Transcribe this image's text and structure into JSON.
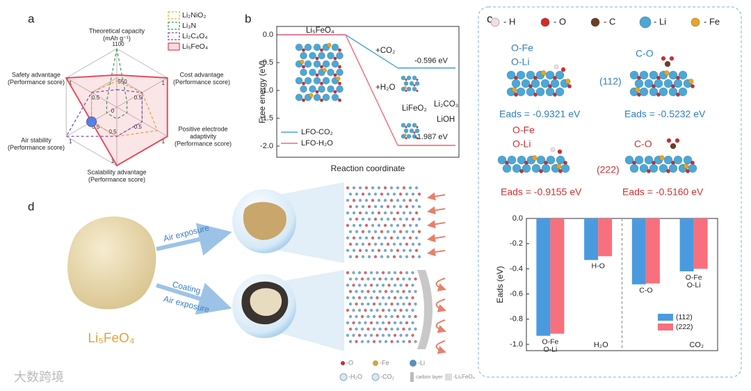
{
  "panel_labels": [
    "a",
    "b",
    "c",
    "d"
  ],
  "chart_data": [
    {
      "type": "radar",
      "axes": [
        [
          "Theoretical capacity",
          "(mAh g⁻¹)"
        ],
        [
          "Cost advantage",
          "(Performance score)"
        ],
        [
          "Positive electrode",
          "adaptivity",
          "(Performance score)"
        ],
        [
          "Scalability advantage",
          "(Performance score)"
        ],
        [
          "Air stability",
          "(Performance score)"
        ],
        [
          "Safety advantage",
          "(Performance score)"
        ]
      ],
      "rlim": [
        0,
        1
      ],
      "rticks": [
        0,
        0.5,
        1
      ],
      "capacity_ticks": [
        {
          "value": 0.5,
          "label": "550"
        },
        {
          "value": 1,
          "label": "1100"
        }
      ],
      "legend": "upper right",
      "series": [
        {
          "name": "Li₂NiO₂",
          "color": "#e8b43a",
          "dash": true,
          "values": [
            0.45,
            0.5,
            0.8,
            0.5,
            0.5,
            0.5
          ]
        },
        {
          "name": "Li₃N",
          "color": "#3f9e5a",
          "dash": true,
          "values": [
            1,
            0.2,
            0.2,
            0.2,
            0.2,
            0.2
          ]
        },
        {
          "name": "Li₂C₄O₄",
          "color": "#7a4fb5",
          "dash": true,
          "values": [
            0.3,
            0.5,
            0.5,
            0.5,
            1,
            0.5
          ]
        },
        {
          "name": "Li₅FeO₄",
          "color": "#e05060",
          "dash": false,
          "fill": true,
          "highlight_index": 4,
          "highlight_color": "#5b7fe0",
          "values": [
            0.55,
            1,
            1,
            1,
            0.5,
            1
          ]
        }
      ]
    },
    {
      "type": "energy-profile",
      "ylabel": "Free energy (eV)",
      "xlabel": "Reaction coordinate",
      "ylim": [
        -2.2,
        0.15
      ],
      "yticks": [
        {
          "value": 0,
          "label": "0.0"
        },
        -0.5,
        {
          "value": -1,
          "label": "-1.0"
        },
        -1.5,
        {
          "value": -2,
          "label": "-2.0"
        }
      ],
      "legend": "lower left",
      "series": [
        {
          "name": "LFO-CO₂",
          "color": "#4aa3df",
          "values": [
            0,
            -0.596
          ],
          "value_labels": [
            null,
            "-0.596 eV"
          ]
        },
        {
          "name": "LFO-H₂O",
          "color": "#f06a78",
          "values": [
            0,
            -1.987
          ],
          "value_labels": [
            null,
            "-1.987 eV"
          ]
        }
      ],
      "annotations": [
        "Li₅FeO₄",
        "+CO₂",
        "+H₂O",
        "LiFeO₂",
        "Li₂CO₃",
        "LiOH"
      ]
    },
    {
      "type": "grouped-bar",
      "ylabel": "Eads (eV)",
      "ylim": [
        -1.05,
        0
      ],
      "yticks": [
        {
          "value": 0,
          "label": "0.0"
        },
        -0.2,
        -0.4,
        -0.6,
        -0.8,
        {
          "value": -1,
          "label": "-1.0"
        }
      ],
      "categories": [
        [
          "O-Fe",
          "O-Li"
        ],
        [
          "H-O"
        ],
        [
          "C-O"
        ],
        [
          "O-Fe",
          "O-Li"
        ]
      ],
      "group_labels": [
        "H₂O",
        "CO₂"
      ],
      "legend": "lower right",
      "series": [
        {
          "name": "(112)",
          "color": "#4a9ae0",
          "values": [
            -0.9321,
            -0.33,
            -0.5232,
            -0.42
          ]
        },
        {
          "name": "(222)",
          "color": "#f8707e",
          "values": [
            -0.9155,
            -0.3,
            -0.516,
            -0.4
          ]
        }
      ]
    }
  ],
  "atom_legend": [
    {
      "label": "- H",
      "color": "#f2dede"
    },
    {
      "label": "- O",
      "color": "#d42a2a"
    },
    {
      "label": "- C",
      "color": "#6b3f22"
    },
    {
      "label": "- Li",
      "color": "#4aa8d8"
    },
    {
      "label": "- Fe",
      "color": "#e8a520"
    }
  ],
  "adsorption": [
    {
      "facet": "(112)",
      "color": "#2f7fc1",
      "cells": [
        {
          "sites": [
            "O-Fe",
            "O-Li"
          ],
          "eads": "Eads = -0.9321 eV"
        },
        {
          "sites": [
            "C-O"
          ],
          "eads": "Eads = -0.5232 eV"
        }
      ]
    },
    {
      "facet": "(222)",
      "color": "#d03030",
      "cells": [
        {
          "sites": [
            "O-Fe",
            "O-Li"
          ],
          "eads": "Eads = -0.9155 eV"
        },
        {
          "sites": [
            "C-O"
          ],
          "eads": "Eads = -0.5160 eV"
        }
      ]
    }
  ],
  "panel_d": {
    "product": "Li₅FeO₄",
    "path_top": [
      "Air exposure"
    ],
    "path_bottom": [
      "Coating",
      "Air exposure"
    ],
    "legend_row1": [
      "-O",
      "-Fe",
      "-Li"
    ],
    "legend_row2": [
      "-H₂O",
      "-CO₂",
      "carbon layer",
      "-Li₅FeO₄"
    ]
  },
  "watermark": "大数跨境"
}
